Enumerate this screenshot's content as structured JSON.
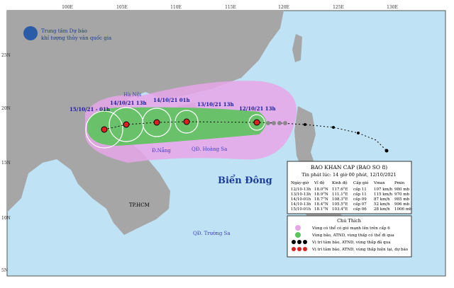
{
  "header": {
    "line1": "Trung tâm Dự báo",
    "line2": "khí tượng thủy văn quốc gia"
  },
  "longitudes": [
    "100E",
    "105E",
    "110E",
    "115E",
    "120E",
    "125E",
    "130E"
  ],
  "latitudes": [
    "25N",
    "20N",
    "15N",
    "10N",
    "5N"
  ],
  "track_labels": [
    "15/10/21 - 01h",
    "14/10/21   13h",
    "14/10/21   01h",
    "13/10/21   13h",
    "12/10/21   13h"
  ],
  "places": {
    "hanoi": "Hà Nội",
    "danang": "Đ.Nẵng",
    "hoangsa": "QĐ. Hoàng Sa",
    "hcm": "TP.HCM",
    "truongsa": "QĐ. Trường Sa",
    "sea": "Biển Đông"
  },
  "info": {
    "title": "BAO KHAN CAP (BAO SO 8)",
    "issued": "Tin phát lúc: 14 giờ 00 phút, 12/10/2021",
    "columns": [
      "Ngày-giờ",
      "Vĩ độ",
      "Kinh độ",
      "Cấp gió",
      "Vmax",
      "Pmin"
    ],
    "rows": [
      [
        "12/10-13h",
        "18.0°N",
        "117.6°E",
        "cấp 11",
        "107 km/h",
        "980 mb"
      ],
      [
        "13/10-13h",
        "18.9°N",
        "111.1°E",
        "cấp 11",
        "115 km/h",
        "970 mb"
      ],
      [
        "14/10-01h",
        "18.7°N",
        "108.3°E",
        "cấp 09",
        "87 km/h",
        "985 mb"
      ],
      [
        "14/10-13h",
        "18.4°N",
        "105.5°E",
        "cấp 07",
        "52 km/h",
        "996 mb"
      ],
      [
        "15/10-01h",
        "18.1°N",
        "103.4°E",
        "cấp 06",
        "28 km/h",
        "1006 mb"
      ]
    ]
  },
  "legend": {
    "title": "Chú Thích",
    "items": [
      "Vùng có thể có gió mạnh lên trên cấp 6",
      "Vùng bão, ATND, vùng thấp có thể đi qua",
      "Vị trí tâm bão, ATND, vùng thấp đã qua",
      "Vị trí tâm bão, ATND, vùng thấp hiện tại, dự báo"
    ]
  }
}
